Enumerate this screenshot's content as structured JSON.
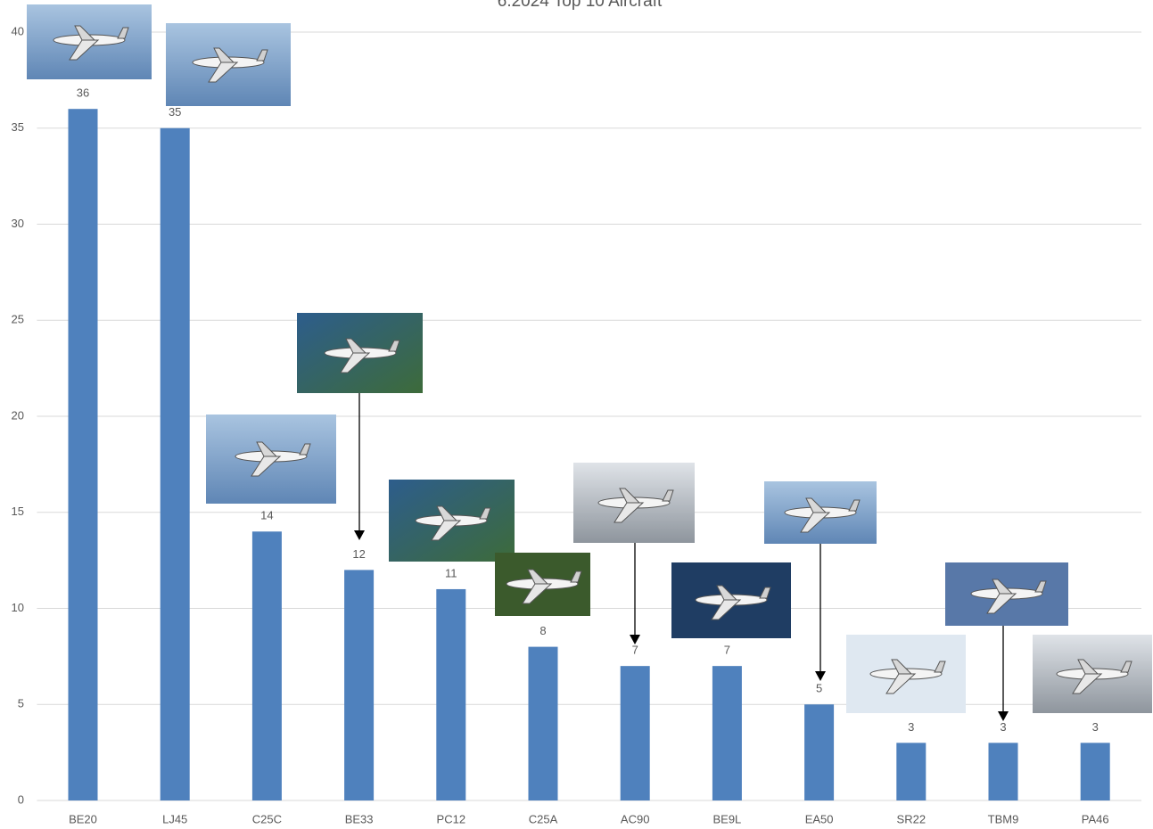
{
  "chart_data": {
    "type": "bar",
    "title": "6.2024 Top 10 Aircraft",
    "categories": [
      "BE20",
      "LJ45",
      "C25C",
      "BE33",
      "PC12",
      "C25A",
      "AC90",
      "BE9L",
      "EA50",
      "SR22",
      "TBM9",
      "PA46"
    ],
    "values": [
      36,
      35,
      14,
      12,
      11,
      8,
      7,
      7,
      5,
      3,
      3,
      3
    ],
    "color": "#4f81bd",
    "ylim": [
      0,
      40
    ],
    "yticks": [
      0,
      5,
      10,
      15,
      20,
      25,
      30,
      35,
      40
    ],
    "grid": true
  }
}
